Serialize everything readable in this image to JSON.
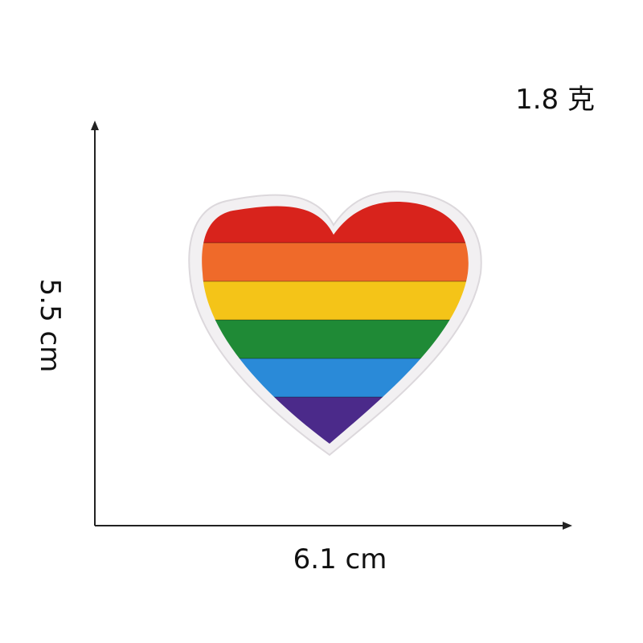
{
  "weight": "1.8 克",
  "dimensions": {
    "width": "6.1 cm",
    "height": "5.5 cm"
  },
  "patch": {
    "subject": "rainbow heart embroidered patch",
    "border_color": "#f2f0f2",
    "stripes": [
      {
        "name": "red",
        "color": "#d8231c"
      },
      {
        "name": "orange",
        "color": "#ef6a2a"
      },
      {
        "name": "yellow",
        "color": "#f4c418"
      },
      {
        "name": "green",
        "color": "#1f8a36"
      },
      {
        "name": "blue",
        "color": "#2a8ad8"
      },
      {
        "name": "purple",
        "color": "#4b2a8a"
      }
    ]
  }
}
